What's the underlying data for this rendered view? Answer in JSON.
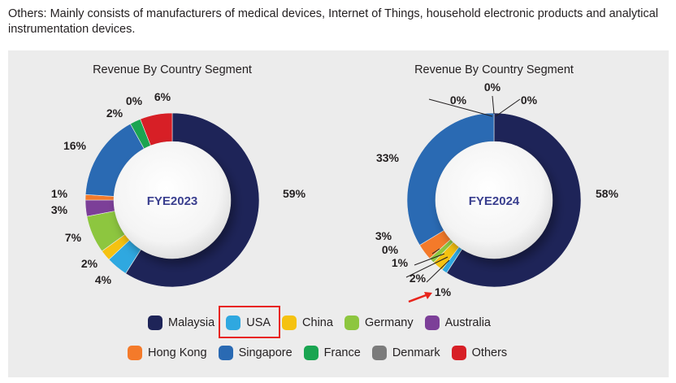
{
  "note": "Others: Mainly consists of manufacturers of medical devices, Internet of Things, household electronic products and analytical instrumentation devices.",
  "colors": {
    "Malaysia": "#1e2458",
    "USA": "#2fa8e0",
    "China": "#f5c211",
    "Germany": "#8dc63f",
    "Australia": "#7c3f98",
    "Hong Kong": "#f47a2a",
    "Singapore": "#2a6ab3",
    "France": "#1aa551",
    "Denmark": "#7b7b7b",
    "Others": "#d71f26"
  },
  "legend": {
    "row1": [
      "Malaysia",
      "USA",
      "China",
      "Germany",
      "Australia"
    ],
    "row2": [
      "Hong Kong",
      "Singapore",
      "France",
      "Denmark",
      "Others"
    ]
  },
  "chart_data": [
    {
      "type": "pie",
      "title": "Revenue By Country Segment",
      "center_label": "FYE2023",
      "categories": [
        "Malaysia",
        "USA",
        "China",
        "Germany",
        "Australia",
        "Hong Kong",
        "Singapore",
        "France",
        "Denmark",
        "Others"
      ],
      "values": [
        59,
        4,
        2,
        7,
        3,
        1,
        16,
        2,
        0,
        6
      ],
      "labels": [
        "59%",
        "4%",
        "2%",
        "7%",
        "3%",
        "1%",
        "16%",
        "2%",
        "0%",
        "6%"
      ]
    },
    {
      "type": "pie",
      "title": "Revenue By Country Segment",
      "center_label": "FYE2024",
      "categories": [
        "Malaysia",
        "USA",
        "China",
        "Germany",
        "Australia",
        "Hong Kong",
        "Singapore",
        "France",
        "Denmark",
        "Others"
      ],
      "values": [
        58,
        1,
        2,
        1,
        0,
        3,
        33,
        0,
        0,
        0
      ],
      "labels": [
        "58%",
        "1%",
        "2%",
        "1%",
        "0%",
        "3%",
        "33%",
        "0%",
        "0%",
        "0%"
      ]
    }
  ]
}
